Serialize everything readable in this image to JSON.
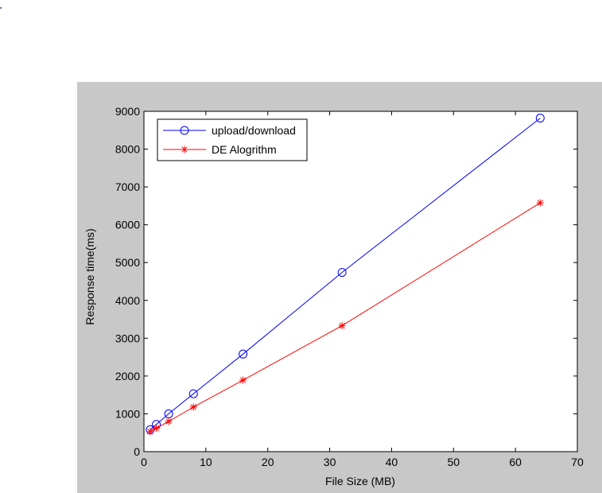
{
  "chart_data": {
    "type": "line",
    "title": "",
    "xlabel": "File Size (MB)",
    "ylabel": "Response time(ms)",
    "xlim": [
      0,
      70
    ],
    "ylim": [
      0,
      9000
    ],
    "xticks": [
      0,
      10,
      20,
      30,
      40,
      50,
      60,
      70
    ],
    "yticks": [
      0,
      1000,
      2000,
      3000,
      4000,
      5000,
      6000,
      7000,
      8000,
      9000
    ],
    "grid": false,
    "legend_position": "top-left",
    "series": [
      {
        "name": "upload/download",
        "color": "#0000ff",
        "marker": "circle",
        "x": [
          1,
          2,
          4,
          8,
          16,
          32,
          64
        ],
        "y": [
          580,
          720,
          1000,
          1530,
          2580,
          4740,
          8820
        ]
      },
      {
        "name": "DE Alogrithm",
        "color": "#ff0000",
        "marker": "asterisk",
        "x": [
          1,
          2,
          4,
          8,
          16,
          32,
          64
        ],
        "y": [
          530,
          620,
          800,
          1180,
          1890,
          3330,
          6580
        ]
      }
    ]
  }
}
